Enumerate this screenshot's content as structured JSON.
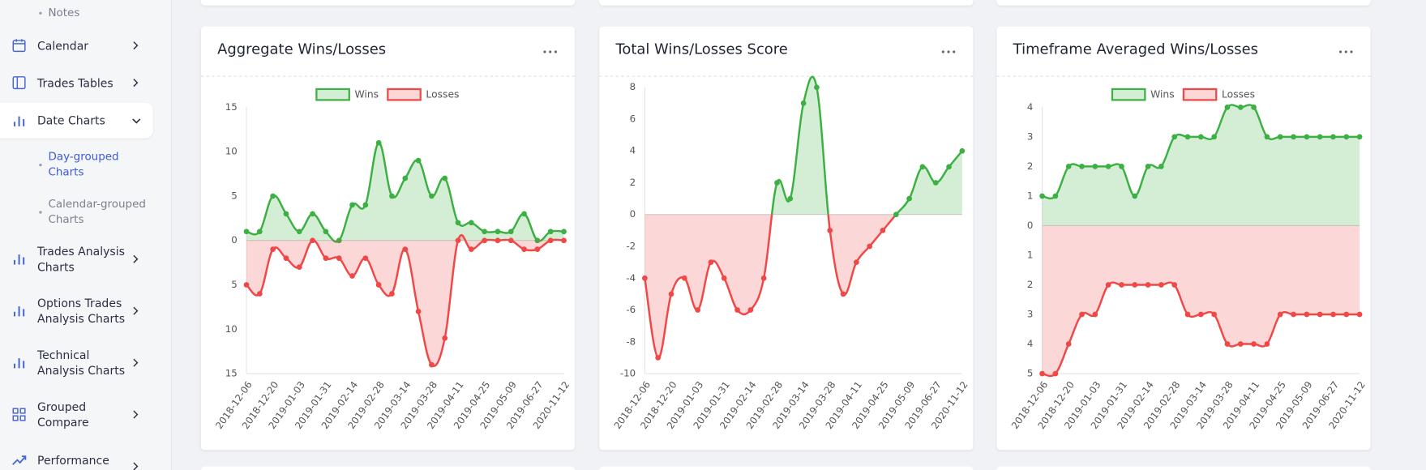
{
  "sidebar": {
    "items": [
      "Notes",
      "Calendar",
      "Trades Tables",
      "Date Charts",
      "Day-grouped Charts",
      "Calendar-grouped Charts",
      "Trades Analysis Charts",
      "Options Trades Analysis Charts",
      "Technical Analysis Charts",
      "Grouped Compare",
      "Performance"
    ]
  },
  "chart_data": [
    {
      "type": "line",
      "title": "Aggregate Wins/Losses",
      "legend": "top",
      "grid": false,
      "fill": true,
      "categories": [
        "2018-12-06",
        null,
        "2018-12-20",
        null,
        "2019-01-03",
        null,
        "2019-01-31",
        null,
        "2019-02-14",
        null,
        "2019-02-28",
        null,
        "2019-03-14",
        null,
        "2019-03-28",
        null,
        "2019-04-11",
        null,
        "2019-04-25",
        null,
        "2019-05-09",
        null,
        "2019-06-27",
        null,
        "2020-11-12"
      ],
      "series": [
        {
          "name": "Wins",
          "color": "#3cb043",
          "values": [
            1,
            1,
            5,
            3,
            1,
            3,
            1,
            0,
            4,
            4,
            11,
            5,
            7,
            9,
            5,
            7,
            2,
            2,
            1,
            1,
            1,
            3,
            0,
            1,
            1
          ]
        },
        {
          "name": "Losses",
          "color": "#f04747",
          "values": [
            -5,
            -6,
            -1,
            -2,
            -3,
            0,
            -2,
            -2,
            -4,
            -2,
            -5,
            -6,
            -1,
            -8,
            -14,
            -11,
            0,
            -1,
            0,
            0,
            0,
            -1,
            -1,
            0,
            0
          ]
        }
      ],
      "ylim": [
        -15,
        15
      ],
      "yticks": [
        15,
        10,
        5,
        0,
        {
          "value": -5,
          "label": "5"
        },
        {
          "value": -10,
          "label": "10"
        },
        {
          "value": -15,
          "label": "15"
        }
      ]
    },
    {
      "type": "line",
      "title": "Total Wins/Losses Score",
      "grid": false,
      "fill": true,
      "categories": [
        "2018-12-06",
        null,
        "2018-12-20",
        null,
        "2019-01-03",
        null,
        "2019-01-31",
        null,
        "2019-02-14",
        null,
        "2019-02-28",
        null,
        "2019-03-14",
        null,
        "2019-03-28",
        null,
        "2019-04-11",
        null,
        "2019-04-25",
        null,
        "2019-05-09",
        null,
        "2019-06-27",
        null,
        "2020-11-12"
      ],
      "values": [
        -4,
        -9,
        -5,
        -4,
        -6,
        -3,
        -4,
        -6,
        -6,
        -4,
        2,
        1,
        7,
        8,
        -1,
        -5,
        -3,
        -2,
        -1,
        0,
        1,
        3,
        2,
        3,
        4
      ],
      "color": "#3cb043",
      "negative_color": "#f04747",
      "ylim": [
        -10,
        8
      ],
      "yticks": [
        -10,
        -8,
        -6,
        -4,
        -2,
        0,
        2,
        4,
        6,
        8
      ]
    },
    {
      "type": "line",
      "title": "Timeframe Averaged Wins/Losses",
      "legend": "top",
      "grid": false,
      "fill": true,
      "categories": [
        "2018-12-06",
        null,
        "2018-12-20",
        null,
        "2019-01-03",
        null,
        "2019-01-31",
        null,
        "2019-02-14",
        null,
        "2019-02-28",
        null,
        "2019-03-14",
        null,
        "2019-03-28",
        null,
        "2019-04-11",
        null,
        "2019-04-25",
        null,
        "2019-05-09",
        null,
        "2019-06-27",
        null,
        "2020-11-12"
      ],
      "series": [
        {
          "name": "Wins",
          "color": "#3cb043",
          "values": [
            1,
            1,
            2,
            2,
            2,
            2,
            2,
            1,
            2,
            2,
            3,
            3,
            3,
            3,
            4,
            4,
            4,
            3,
            3,
            3,
            3,
            3,
            3,
            3,
            3
          ]
        },
        {
          "name": "Losses",
          "color": "#f04747",
          "values": [
            -5,
            -5,
            -4,
            -3,
            -3,
            -2,
            -2,
            -2,
            -2,
            -2,
            -2,
            -3,
            -3,
            -3,
            -4,
            -4,
            -4,
            -4,
            -3,
            -3,
            -3,
            -3,
            -3,
            -3,
            -3
          ]
        }
      ],
      "ylim": [
        -5,
        4
      ],
      "yticks": [
        4,
        3,
        2,
        1,
        0,
        {
          "value": -1,
          "label": "1"
        },
        {
          "value": -2,
          "label": "2"
        },
        {
          "value": -3,
          "label": "3"
        },
        {
          "value": -4,
          "label": "4"
        },
        {
          "value": -5,
          "label": "5"
        }
      ]
    }
  ]
}
